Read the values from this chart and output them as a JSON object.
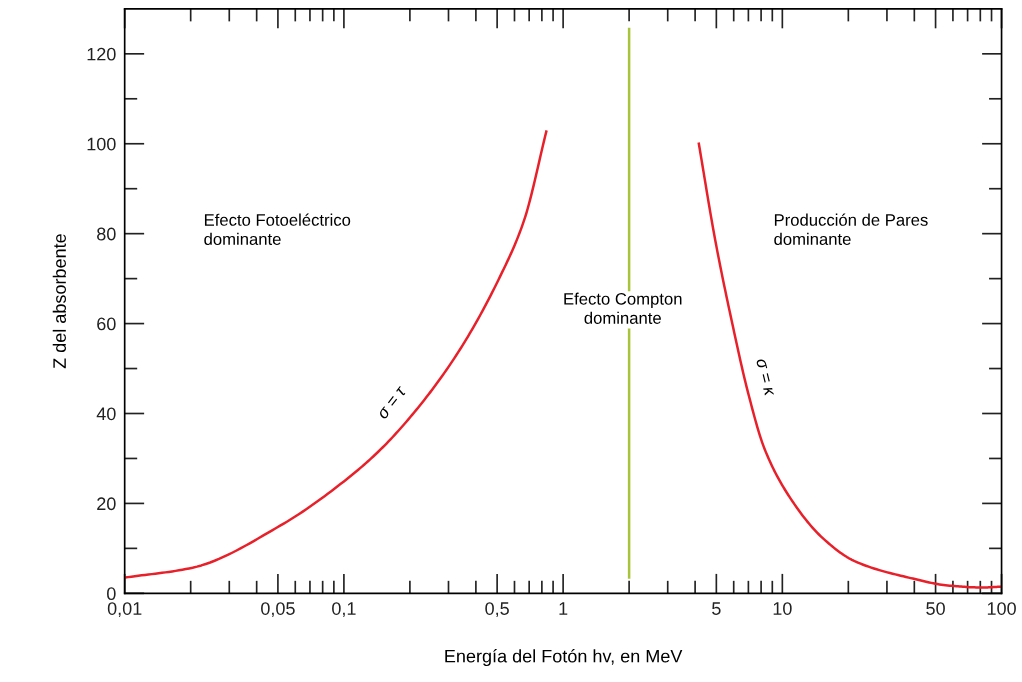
{
  "chart_data": {
    "type": "line",
    "xlabel": "Energía del Fotón hv, en MeV",
    "ylabel": "Z del absorbente",
    "log": "x",
    "xlim": [
      0.01,
      100
    ],
    "ylim": [
      0,
      130
    ],
    "xticks": [
      {
        "value": 0.01,
        "label": "0,01"
      },
      {
        "value": 0.02,
        "label": null
      },
      {
        "value": 0.03,
        "label": null
      },
      {
        "value": 0.04,
        "label": null
      },
      {
        "value": 0.05,
        "label": "0,05"
      },
      {
        "value": 0.06,
        "label": null
      },
      {
        "value": 0.07,
        "label": null
      },
      {
        "value": 0.08,
        "label": null
      },
      {
        "value": 0.09,
        "label": null
      },
      {
        "value": 0.1,
        "label": "0,1"
      },
      {
        "value": 0.2,
        "label": null
      },
      {
        "value": 0.3,
        "label": null
      },
      {
        "value": 0.4,
        "label": null
      },
      {
        "value": 0.5,
        "label": "0,5"
      },
      {
        "value": 0.6,
        "label": null
      },
      {
        "value": 0.7,
        "label": null
      },
      {
        "value": 0.8,
        "label": null
      },
      {
        "value": 0.9,
        "label": null
      },
      {
        "value": 1,
        "label": "1"
      },
      {
        "value": 2,
        "label": null
      },
      {
        "value": 3,
        "label": null
      },
      {
        "value": 4,
        "label": null
      },
      {
        "value": 5,
        "label": "5"
      },
      {
        "value": 6,
        "label": null
      },
      {
        "value": 7,
        "label": null
      },
      {
        "value": 8,
        "label": null
      },
      {
        "value": 9,
        "label": null
      },
      {
        "value": 10,
        "label": "10"
      },
      {
        "value": 20,
        "label": null
      },
      {
        "value": 30,
        "label": null
      },
      {
        "value": 40,
        "label": null
      },
      {
        "value": 50,
        "label": "50"
      },
      {
        "value": 60,
        "label": null
      },
      {
        "value": 70,
        "label": null
      },
      {
        "value": 80,
        "label": null
      },
      {
        "value": 90,
        "label": null
      },
      {
        "value": 100,
        "label": "100"
      }
    ],
    "yticks": [
      0,
      {
        "value": 10,
        "label": null
      },
      20,
      {
        "value": 30,
        "label": null
      },
      40,
      {
        "value": 50,
        "label": null
      },
      60,
      {
        "value": 70,
        "label": null
      },
      80,
      {
        "value": 90,
        "label": null
      },
      100,
      {
        "value": 110,
        "label": null
      },
      120
    ],
    "grid": false,
    "marker": "none",
    "line_style": "solid",
    "series": [
      {
        "color": "#e8202a",
        "x": [
          0.01,
          0.0204,
          0.0514,
          0.1,
          0.147,
          0.223,
          0.34,
          0.516,
          0.664,
          0.838
        ],
        "values": [
          3.5,
          5.7,
          15.1,
          24.9,
          32,
          41.9,
          54.4,
          70.5,
          83,
          102.7
        ]
      },
      {
        "color": "#e8202a",
        "x": [
          4.16,
          4.94,
          5.87,
          6.98,
          8.3,
          10.8,
          15.2,
          21.5,
          37.7,
          58,
          82,
          100
        ],
        "values": [
          100,
          78.6,
          60.7,
          44.6,
          32.1,
          21.4,
          12.4,
          7.1,
          3.5,
          1.7,
          1.3,
          1.5
        ]
      },
      {
        "color": "#a8c43a",
        "x": [
          2,
          2
        ],
        "values": [
          3.5,
          125.5
        ]
      }
    ],
    "annotations": [
      "Efecto Fotoeléctrico\ndominante",
      "Efecto Compton\ndominante",
      "Producción de Pares\ndominante",
      "σ = τ",
      "σ = κ"
    ]
  }
}
